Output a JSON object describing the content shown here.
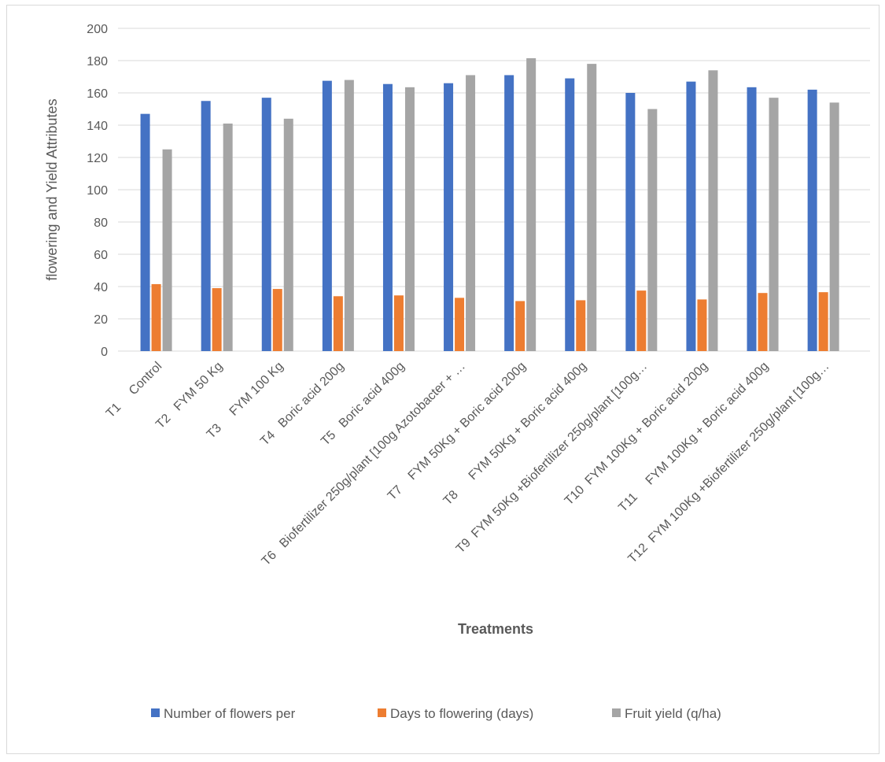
{
  "chart_data": {
    "type": "bar",
    "title": "",
    "xlabel": "Treatments",
    "ylabel": "flowering and Yield Attributes",
    "ylim": [
      0,
      200
    ],
    "ytick_step": 20,
    "grid": true,
    "legend_position": "bottom",
    "categories": [
      "T1     Control",
      "T2   FYM 50 Kg",
      "T3     FYM 100 Kg",
      "T4   Boric acid 200g",
      "T5   Boric acid 400g",
      "T6   Biofertilizer 250g/plant [100g Azotobacter + …",
      "T7    FYM 50Kg + Boric acid 200g",
      "T8      FYM 50Kg + Boric acid 400g",
      "T9  FYM 50Kg +Biofertilizer 250g/plant [100g…",
      "T10  FYM 100Kg + Boric acid 200g",
      "T11     FYM 100Kg + Boric acid 400g",
      "T12  FYM 100Kg +Biofertilizer 250g/plant [100g…"
    ],
    "series": [
      {
        "name": "Number of flowers per",
        "color": "#4472c4",
        "values": [
          147,
          155,
          157,
          167.5,
          165.5,
          166,
          171,
          169,
          160,
          167,
          163.5,
          162
        ]
      },
      {
        "name": "Days to flowering (days)",
        "color": "#ed7d31",
        "values": [
          41.5,
          39,
          38.5,
          34,
          34.5,
          33,
          31,
          31.5,
          37.5,
          32,
          36,
          36.5
        ]
      },
      {
        "name": "Fruit yield (q/ha)",
        "color": "#a5a5a5",
        "values": [
          125,
          141,
          144,
          168,
          163.5,
          171,
          181.5,
          178,
          150,
          174,
          157,
          154
        ]
      }
    ]
  }
}
